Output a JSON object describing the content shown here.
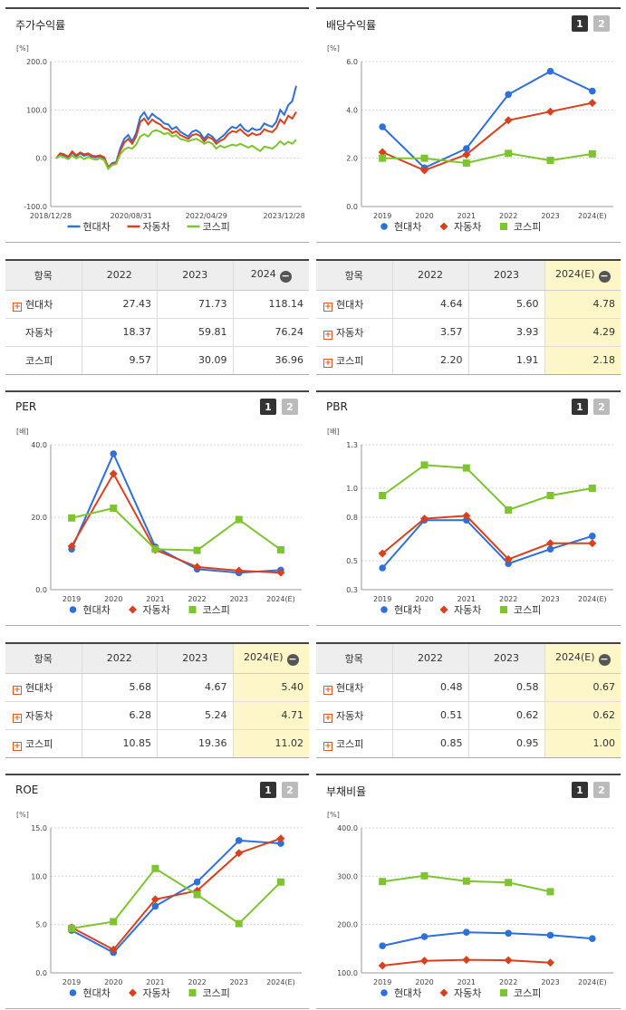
{
  "stock_panel": {
    "title": "주가수익률"
  },
  "dividend_panel": {
    "title": "배당수익률",
    "page_buttons": [
      "1",
      "2"
    ]
  },
  "per_panel": {
    "title": "PER",
    "page_buttons": [
      "1",
      "2"
    ]
  },
  "pbr_panel": {
    "title": "PBR",
    "page_buttons": [
      "1",
      "2"
    ]
  },
  "roe_panel": {
    "title": "ROE",
    "page_buttons": [
      "1",
      "2"
    ]
  },
  "debt_panel": {
    "title": "부채비율",
    "page_buttons": [
      "1",
      "2"
    ]
  },
  "colors": {
    "hyundai": "#2d6fdb",
    "auto": "#d9411e",
    "kospi": "#7dc52e"
  },
  "chart_data": [
    {
      "id": "stock",
      "type": "line",
      "ylabel": "[%]",
      "ylim": [
        -100,
        200
      ],
      "yticks": [
        "200.0",
        "100.0",
        "0.0",
        "-100.0"
      ],
      "xticks": [
        "2018/12/28",
        "2020/08/31",
        "2022/04/29",
        "2023/12/28"
      ],
      "legend_position": "bottom",
      "series": [
        {
          "name": "현대차",
          "marker": "none",
          "values": [
            0,
            8,
            6,
            2,
            12,
            4,
            10,
            5,
            8,
            3,
            2,
            4,
            0,
            -20,
            -10,
            -8,
            20,
            40,
            48,
            35,
            52,
            85,
            95,
            80,
            92,
            85,
            80,
            72,
            70,
            60,
            65,
            55,
            50,
            45,
            55,
            58,
            52,
            40,
            50,
            45,
            35,
            42,
            48,
            58,
            65,
            62,
            70,
            60,
            55,
            62,
            58,
            60,
            72,
            68,
            65,
            75,
            100,
            90,
            110,
            118,
            150
          ]
        },
        {
          "name": "자동차",
          "marker": "none",
          "values": [
            0,
            10,
            8,
            3,
            14,
            6,
            12,
            8,
            10,
            5,
            4,
            6,
            2,
            -18,
            -12,
            -10,
            15,
            32,
            40,
            30,
            45,
            75,
            82,
            70,
            80,
            74,
            70,
            62,
            60,
            52,
            56,
            48,
            44,
            40,
            48,
            50,
            46,
            35,
            44,
            40,
            30,
            36,
            40,
            50,
            56,
            54,
            60,
            52,
            46,
            52,
            48,
            50,
            60,
            56,
            54,
            62,
            80,
            72,
            88,
            82,
            96
          ]
        },
        {
          "name": "코스피",
          "marker": "none",
          "values": [
            0,
            5,
            2,
            -2,
            6,
            0,
            4,
            -2,
            3,
            -1,
            -3,
            0,
            -4,
            -22,
            -14,
            -12,
            8,
            18,
            22,
            20,
            28,
            45,
            50,
            45,
            55,
            58,
            55,
            50,
            52,
            45,
            48,
            40,
            38,
            35,
            38,
            40,
            36,
            30,
            34,
            30,
            20,
            26,
            22,
            25,
            28,
            26,
            30,
            26,
            22,
            26,
            20,
            15,
            24,
            22,
            20,
            26,
            35,
            28,
            34,
            30,
            38
          ]
        }
      ]
    },
    {
      "id": "dividend",
      "type": "line",
      "ylabel": "[%]",
      "ylim": [
        0,
        6
      ],
      "yticks": [
        "6.0",
        "4.0",
        "2.0",
        "0.0"
      ],
      "categories": [
        "2019",
        "2020",
        "2021",
        "2022",
        "2023",
        "2024(E)"
      ],
      "legend_position": "bottom",
      "series": [
        {
          "name": "현대차",
          "marker": "circle",
          "values": [
            3.3,
            1.6,
            2.4,
            4.64,
            5.6,
            4.78
          ]
        },
        {
          "name": "자동차",
          "marker": "diamond",
          "values": [
            2.25,
            1.5,
            2.15,
            3.57,
            3.93,
            4.29
          ]
        },
        {
          "name": "코스피",
          "marker": "square",
          "values": [
            2.0,
            2.0,
            1.8,
            2.2,
            1.91,
            2.18
          ]
        }
      ]
    },
    {
      "id": "per",
      "type": "line",
      "ylabel": "[배]",
      "ylim": [
        0,
        40
      ],
      "yticks": [
        "40.0",
        "20.0",
        "0.0"
      ],
      "categories": [
        "2019",
        "2020",
        "2021",
        "2022",
        "2023",
        "2024(E)"
      ],
      "legend_position": "bottom",
      "series": [
        {
          "name": "현대차",
          "marker": "circle",
          "values": [
            11.2,
            37.5,
            11.8,
            5.68,
            4.67,
            5.4
          ]
        },
        {
          "name": "자동차",
          "marker": "diamond",
          "values": [
            12.0,
            32.0,
            11.0,
            6.28,
            5.24,
            4.71
          ]
        },
        {
          "name": "코스피",
          "marker": "square",
          "values": [
            19.8,
            22.5,
            11.2,
            10.85,
            19.36,
            11.02
          ]
        }
      ]
    },
    {
      "id": "pbr",
      "type": "line",
      "ylabel": "[배]",
      "ylim": [
        0.3,
        1.3
      ],
      "yticks": [
        "1.3",
        "1.0",
        "0.8",
        "0.5",
        "0.3"
      ],
      "categories": [
        "2019",
        "2020",
        "2021",
        "2022",
        "2023",
        "2024(E)"
      ],
      "legend_position": "bottom",
      "series": [
        {
          "name": "현대차",
          "marker": "circle",
          "values": [
            0.45,
            0.78,
            0.78,
            0.48,
            0.58,
            0.67
          ]
        },
        {
          "name": "자동차",
          "marker": "diamond",
          "values": [
            0.55,
            0.79,
            0.81,
            0.51,
            0.62,
            0.62
          ]
        },
        {
          "name": "코스피",
          "marker": "square",
          "values": [
            0.95,
            1.16,
            1.14,
            0.85,
            0.95,
            1.0
          ]
        }
      ]
    },
    {
      "id": "roe",
      "type": "line",
      "ylabel": "[%]",
      "ylim": [
        0,
        15
      ],
      "yticks": [
        "15.0",
        "10.0",
        "5.0",
        "0.0"
      ],
      "categories": [
        "2019",
        "2020",
        "2021",
        "2022",
        "2023",
        "2024(E)"
      ],
      "legend_position": "bottom",
      "series": [
        {
          "name": "현대차",
          "marker": "circle",
          "values": [
            4.4,
            2.1,
            6.9,
            9.4,
            13.7,
            13.4
          ]
        },
        {
          "name": "자동차",
          "marker": "diamond",
          "values": [
            4.7,
            2.4,
            7.6,
            8.5,
            12.4,
            13.9
          ]
        },
        {
          "name": "코스피",
          "marker": "square",
          "values": [
            4.6,
            5.3,
            10.8,
            8.1,
            5.1,
            9.4
          ]
        }
      ]
    },
    {
      "id": "debt",
      "type": "line",
      "ylabel": "[%]",
      "ylim": [
        100,
        400
      ],
      "yticks": [
        "400.0",
        "300.0",
        "200.0",
        "100.0"
      ],
      "categories": [
        "2019",
        "2020",
        "2021",
        "2022",
        "2023",
        "2024(E)"
      ],
      "legend_position": "bottom",
      "series": [
        {
          "name": "현대차",
          "marker": "circle",
          "values": [
            156,
            175,
            184,
            182,
            178,
            171
          ]
        },
        {
          "name": "자동차",
          "marker": "diamond",
          "values": [
            115,
            125,
            127,
            126,
            121,
            null
          ]
        },
        {
          "name": "코스피",
          "marker": "square",
          "values": [
            289,
            301,
            290,
            287,
            268,
            null
          ]
        }
      ]
    }
  ],
  "tables": {
    "stock": {
      "header": [
        "항목",
        "2022",
        "2023",
        "2024"
      ],
      "rows": [
        {
          "name": "현대차",
          "values": [
            "27.43",
            "71.73",
            "118.14"
          ]
        },
        {
          "name": "자동차",
          "values": [
            "18.37",
            "59.81",
            "76.24"
          ]
        },
        {
          "name": "코스피",
          "values": [
            "9.57",
            "30.09",
            "36.96"
          ]
        }
      ]
    },
    "dividend": {
      "header": [
        "항목",
        "2022",
        "2023",
        "2024(E)"
      ],
      "rows": [
        {
          "name": "현대차",
          "values": [
            "4.64",
            "5.60",
            "4.78"
          ]
        },
        {
          "name": "자동차",
          "values": [
            "3.57",
            "3.93",
            "4.29"
          ]
        },
        {
          "name": "코스피",
          "values": [
            "2.20",
            "1.91",
            "2.18"
          ]
        }
      ]
    },
    "per": {
      "header": [
        "항목",
        "2022",
        "2023",
        "2024(E)"
      ],
      "rows": [
        {
          "name": "현대차",
          "values": [
            "5.68",
            "4.67",
            "5.40"
          ]
        },
        {
          "name": "자동차",
          "values": [
            "6.28",
            "5.24",
            "4.71"
          ]
        },
        {
          "name": "코스피",
          "values": [
            "10.85",
            "19.36",
            "11.02"
          ]
        }
      ]
    },
    "pbr": {
      "header": [
        "항목",
        "2022",
        "2023",
        "2024(E)"
      ],
      "rows": [
        {
          "name": "현대차",
          "values": [
            "0.48",
            "0.58",
            "0.67"
          ]
        },
        {
          "name": "자동차",
          "values": [
            "0.51",
            "0.62",
            "0.62"
          ]
        },
        {
          "name": "코스피",
          "values": [
            "0.85",
            "0.95",
            "1.00"
          ]
        }
      ]
    }
  }
}
